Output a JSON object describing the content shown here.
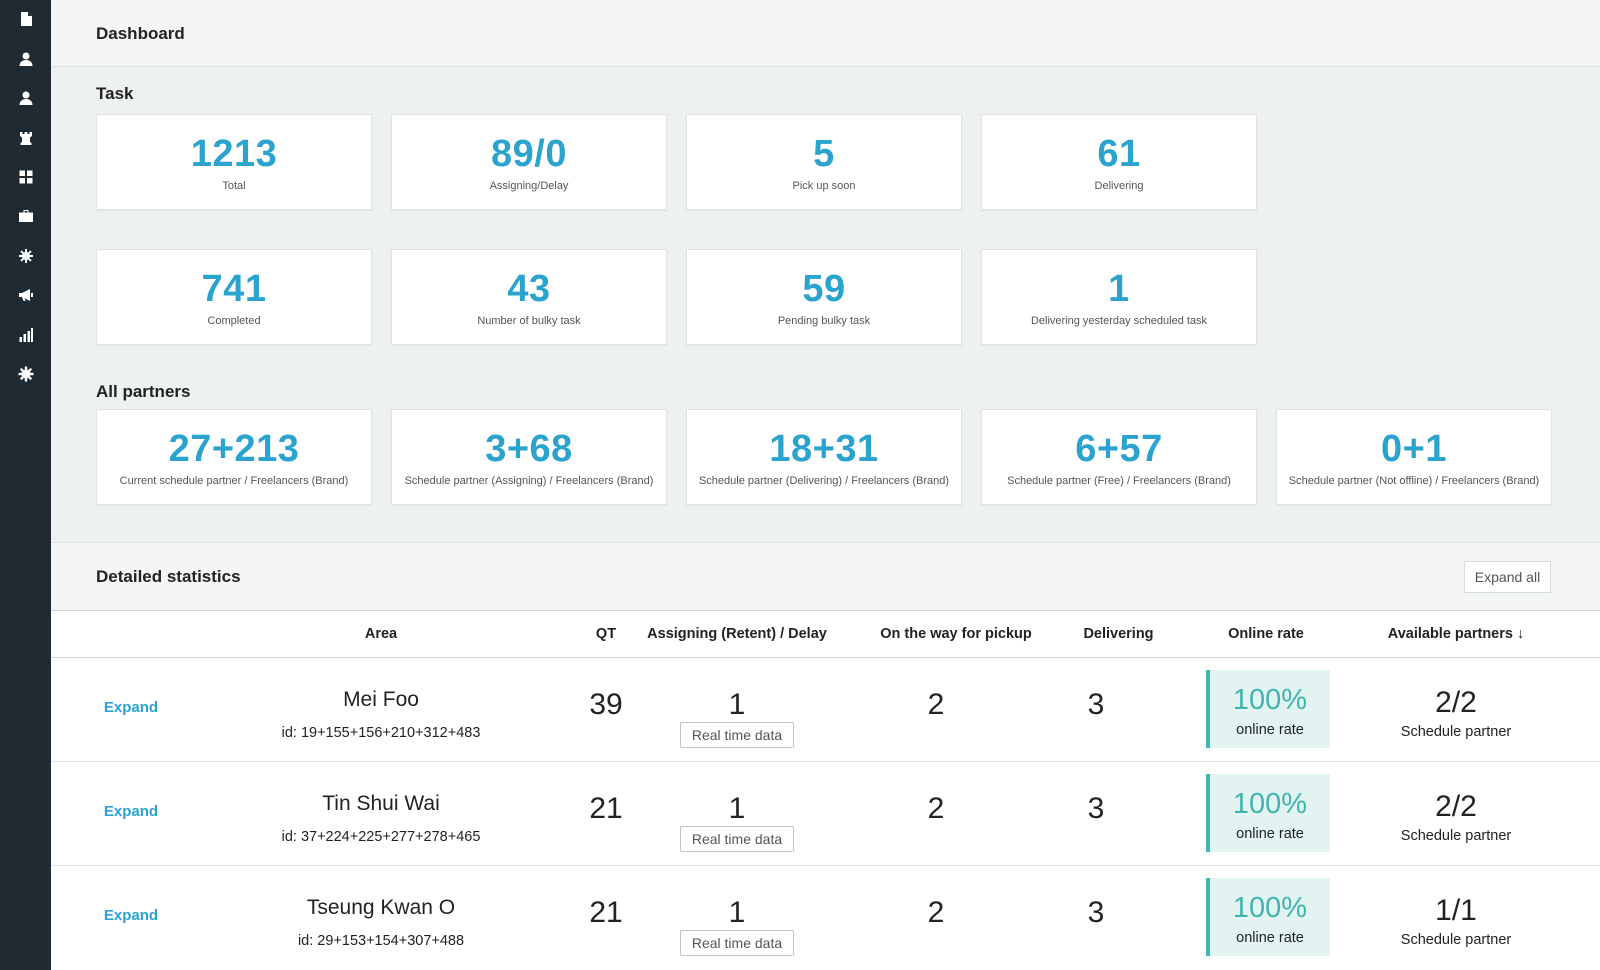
{
  "header": {
    "title": "Dashboard"
  },
  "sidebar": {
    "icons": [
      "document-icon",
      "user-icon",
      "user-alt-icon",
      "chess-rook-icon",
      "grid-icon",
      "briefcase-icon",
      "gear-icon",
      "megaphone-icon",
      "bar-chart-icon",
      "settings-icon"
    ]
  },
  "task": {
    "title": "Task",
    "cards": [
      {
        "value": "1213",
        "label": "Total"
      },
      {
        "value": "89/0",
        "label": "Assigning/Delay"
      },
      {
        "value": "5",
        "label": "Pick up soon"
      },
      {
        "value": "61",
        "label": "Delivering"
      },
      {
        "value": "741",
        "label": "Completed"
      },
      {
        "value": "43",
        "label": "Number of bulky task"
      },
      {
        "value": "59",
        "label": "Pending bulky task"
      },
      {
        "value": "1",
        "label": "Delivering yesterday scheduled task"
      }
    ]
  },
  "partners": {
    "title": "All partners",
    "cards": [
      {
        "value": "27+213",
        "label": "Current schedule partner / Freelancers (Brand)"
      },
      {
        "value": "3+68",
        "label": "Schedule partner (Assigning) / Freelancers (Brand)"
      },
      {
        "value": "18+31",
        "label": "Schedule partner (Delivering) / Freelancers (Brand)"
      },
      {
        "value": "6+57",
        "label": "Schedule partner (Free) / Freelancers (Brand)"
      },
      {
        "value": "0+1",
        "label": "Schedule partner (Not offline) / Freelancers (Brand)"
      }
    ]
  },
  "stats": {
    "title": "Detailed statistics",
    "expand_all_label": "Expand all",
    "columns": {
      "area": "Area",
      "qt": "QT",
      "assigning": "Assigning (Retent) / Delay",
      "pickup": "On the way for pickup",
      "delivering": "Delivering",
      "online_rate": "Online rate",
      "available": "Available partners ↓"
    },
    "rows": [
      {
        "expand": "Expand",
        "area": "Mei Foo",
        "id": "id: 19+155+156+210+312+483",
        "qt": "39",
        "assigning": "1",
        "realtime": "Real time data",
        "pickup": "2",
        "delivering": "3",
        "rate": "100%",
        "rate_label": "online rate",
        "partners": "2/2",
        "partners_label": "Schedule partner"
      },
      {
        "expand": "Expand",
        "area": "Tin Shui Wai",
        "id": "id: 37+224+225+277+278+465",
        "qt": "21",
        "assigning": "1",
        "realtime": "Real time data",
        "pickup": "2",
        "delivering": "3",
        "rate": "100%",
        "rate_label": "online rate",
        "partners": "2/2",
        "partners_label": "Schedule partner"
      },
      {
        "expand": "Expand",
        "area": "Tseung Kwan O",
        "id": "id: 29+153+154+307+488",
        "qt": "21",
        "assigning": "1",
        "realtime": "Real time data",
        "pickup": "2",
        "delivering": "3",
        "rate": "100%",
        "rate_label": "online rate",
        "partners": "1/1",
        "partners_label": "Schedule partner"
      }
    ]
  },
  "colors": {
    "accent": "#2aa3cf",
    "teal": "#3fb5ad",
    "sidebar": "#1f2a33"
  }
}
